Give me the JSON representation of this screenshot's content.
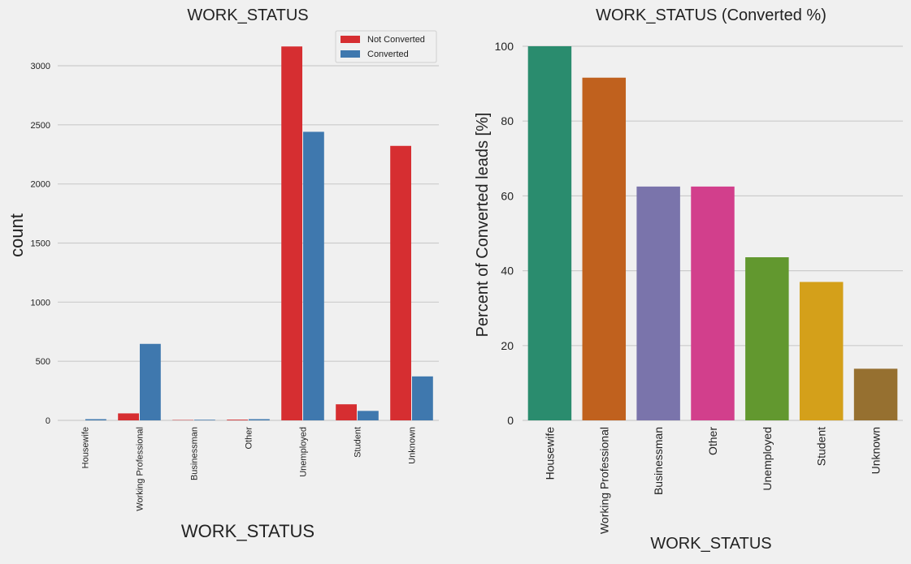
{
  "colors": {
    "background": "#f0f0f0",
    "grid": "#cbcbcb",
    "not_converted": "#d62e31",
    "converted": "#3f78ae"
  },
  "chart_data": [
    {
      "type": "bar",
      "title": "WORK_STATUS",
      "xlabel": "WORK_STATUS",
      "ylabel": "count",
      "ylim": [
        0,
        3300
      ],
      "yticks": [
        0,
        500,
        1000,
        1500,
        2000,
        2500,
        3000
      ],
      "grid": true,
      "legend_position": "top-right",
      "categories": [
        "Housewife",
        "Working Professional",
        "Businessman",
        "Other",
        "Unemployed",
        "Student",
        "Unknown"
      ],
      "series": [
        {
          "name": "Not Converted",
          "color": "#d62e31",
          "values": [
            0,
            59,
            3,
            6,
            3163,
            136,
            2322
          ]
        },
        {
          "name": "Converted",
          "color": "#3f78ae",
          "values": [
            10,
            647,
            5,
            10,
            2441,
            80,
            372
          ]
        }
      ]
    },
    {
      "type": "bar",
      "title": "WORK_STATUS (Converted %)",
      "xlabel": "WORK_STATUS",
      "ylabel": "Percent of Converted leads [%]",
      "ylim": [
        0,
        100
      ],
      "yticks": [
        0,
        20,
        40,
        60,
        80,
        100
      ],
      "grid": true,
      "categories": [
        "Housewife",
        "Working Professional",
        "Businessman",
        "Other",
        "Unemployed",
        "Student",
        "Unknown"
      ],
      "values": [
        100,
        91.6,
        62.5,
        62.5,
        43.6,
        37.0,
        13.8
      ],
      "colors": [
        "#2a8c6e",
        "#c0611e",
        "#7a74ab",
        "#d23f8c",
        "#62982f",
        "#d4a01a",
        "#967030"
      ]
    }
  ]
}
